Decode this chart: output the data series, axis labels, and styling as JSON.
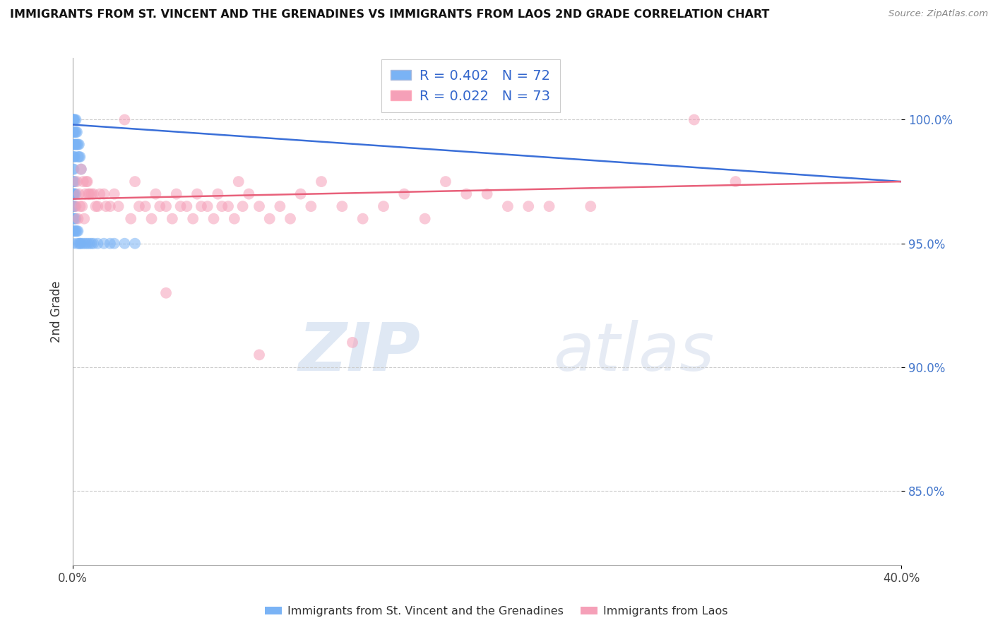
{
  "title": "IMMIGRANTS FROM ST. VINCENT AND THE GRENADINES VS IMMIGRANTS FROM LAOS 2ND GRADE CORRELATION CHART",
  "source": "Source: ZipAtlas.com",
  "ylabel": "2nd Grade",
  "xlim": [
    0.0,
    40.0
  ],
  "ylim": [
    82.0,
    102.5
  ],
  "yticks": [
    85.0,
    90.0,
    95.0,
    100.0
  ],
  "ytick_labels": [
    "85.0%",
    "90.0%",
    "95.0%",
    "100.0%"
  ],
  "blue_R": 0.402,
  "blue_N": 72,
  "pink_R": 0.022,
  "pink_N": 73,
  "blue_color": "#7ab3f5",
  "pink_color": "#f5a0b8",
  "blue_line_color": "#3a6fd8",
  "pink_line_color": "#e8607a",
  "watermark": "ZIPatlas",
  "legend_label_blue": "Immigrants from St. Vincent and the Grenadines",
  "legend_label_pink": "Immigrants from Laos",
  "blue_x": [
    0.0,
    0.0,
    0.0,
    0.0,
    0.0,
    0.0,
    0.0,
    0.0,
    0.0,
    0.0,
    0.05,
    0.05,
    0.05,
    0.05,
    0.05,
    0.1,
    0.1,
    0.1,
    0.1,
    0.15,
    0.15,
    0.15,
    0.2,
    0.2,
    0.25,
    0.25,
    0.3,
    0.3,
    0.35,
    0.4,
    0.0,
    0.0,
    0.0,
    0.0,
    0.05,
    0.05,
    0.05,
    0.1,
    0.1,
    0.15,
    0.0,
    0.0,
    0.0,
    0.0,
    0.0,
    0.05,
    0.05,
    0.05,
    0.05,
    0.1,
    0.1,
    0.1,
    0.15,
    0.15,
    0.2,
    0.2,
    0.25,
    0.3,
    0.35,
    0.4,
    0.5,
    0.6,
    0.7,
    0.8,
    0.9,
    1.0,
    1.2,
    1.5,
    1.8,
    2.0,
    2.5,
    3.0
  ],
  "blue_y": [
    100.0,
    100.0,
    100.0,
    100.0,
    100.0,
    100.0,
    100.0,
    100.0,
    99.5,
    99.0,
    100.0,
    100.0,
    99.5,
    99.0,
    98.5,
    100.0,
    99.5,
    99.0,
    98.5,
    100.0,
    99.5,
    99.0,
    99.5,
    99.0,
    99.0,
    98.5,
    99.0,
    98.5,
    98.5,
    98.0,
    98.5,
    98.0,
    97.5,
    97.0,
    98.0,
    97.5,
    97.0,
    97.5,
    97.0,
    97.0,
    97.0,
    96.5,
    96.0,
    95.5,
    95.0,
    97.0,
    96.5,
    96.0,
    95.5,
    96.5,
    96.0,
    95.5,
    96.0,
    95.5,
    95.5,
    95.0,
    95.5,
    95.0,
    95.0,
    95.0,
    95.0,
    95.0,
    95.0,
    95.0,
    95.0,
    95.0,
    95.0,
    95.0,
    95.0,
    95.0,
    95.0,
    95.0
  ],
  "pink_x": [
    0.2,
    0.4,
    0.5,
    0.6,
    0.7,
    0.8,
    1.0,
    1.2,
    1.5,
    1.8,
    2.0,
    2.5,
    3.0,
    3.5,
    4.0,
    4.5,
    5.0,
    5.5,
    6.0,
    6.5,
    7.0,
    7.5,
    8.0,
    8.5,
    9.0,
    10.0,
    11.0,
    12.0,
    13.0,
    14.0,
    15.0,
    16.0,
    17.0,
    18.0,
    19.0,
    20.0,
    21.0,
    22.0,
    23.0,
    25.0,
    0.3,
    0.35,
    0.45,
    0.55,
    0.65,
    0.75,
    0.9,
    1.1,
    1.3,
    1.6,
    2.2,
    2.8,
    3.2,
    3.8,
    4.2,
    4.8,
    5.2,
    5.8,
    6.2,
    6.8,
    7.2,
    7.8,
    8.2,
    9.5,
    10.5,
    11.5,
    30.0,
    32.0,
    0.15,
    0.25,
    4.5,
    9.0,
    13.5
  ],
  "pink_y": [
    97.5,
    98.0,
    97.5,
    97.0,
    97.5,
    97.0,
    97.0,
    96.5,
    97.0,
    96.5,
    97.0,
    100.0,
    97.5,
    96.5,
    97.0,
    96.5,
    97.0,
    96.5,
    97.0,
    96.5,
    97.0,
    96.5,
    97.5,
    97.0,
    96.5,
    96.5,
    97.0,
    97.5,
    96.5,
    96.0,
    96.5,
    97.0,
    96.0,
    97.5,
    97.0,
    97.0,
    96.5,
    96.5,
    96.5,
    96.5,
    97.0,
    96.5,
    96.5,
    96.0,
    97.5,
    97.0,
    97.0,
    96.5,
    97.0,
    96.5,
    96.5,
    96.0,
    96.5,
    96.0,
    96.5,
    96.0,
    96.5,
    96.0,
    96.5,
    96.0,
    96.5,
    96.0,
    96.5,
    96.0,
    96.0,
    96.5,
    100.0,
    97.5,
    96.5,
    96.0,
    93.0,
    90.5,
    91.0
  ],
  "blue_trend_x": [
    0.0,
    40.0
  ],
  "blue_trend_y": [
    99.8,
    97.5
  ],
  "pink_trend_x": [
    0.0,
    40.0
  ],
  "pink_trend_y": [
    96.8,
    97.5
  ]
}
